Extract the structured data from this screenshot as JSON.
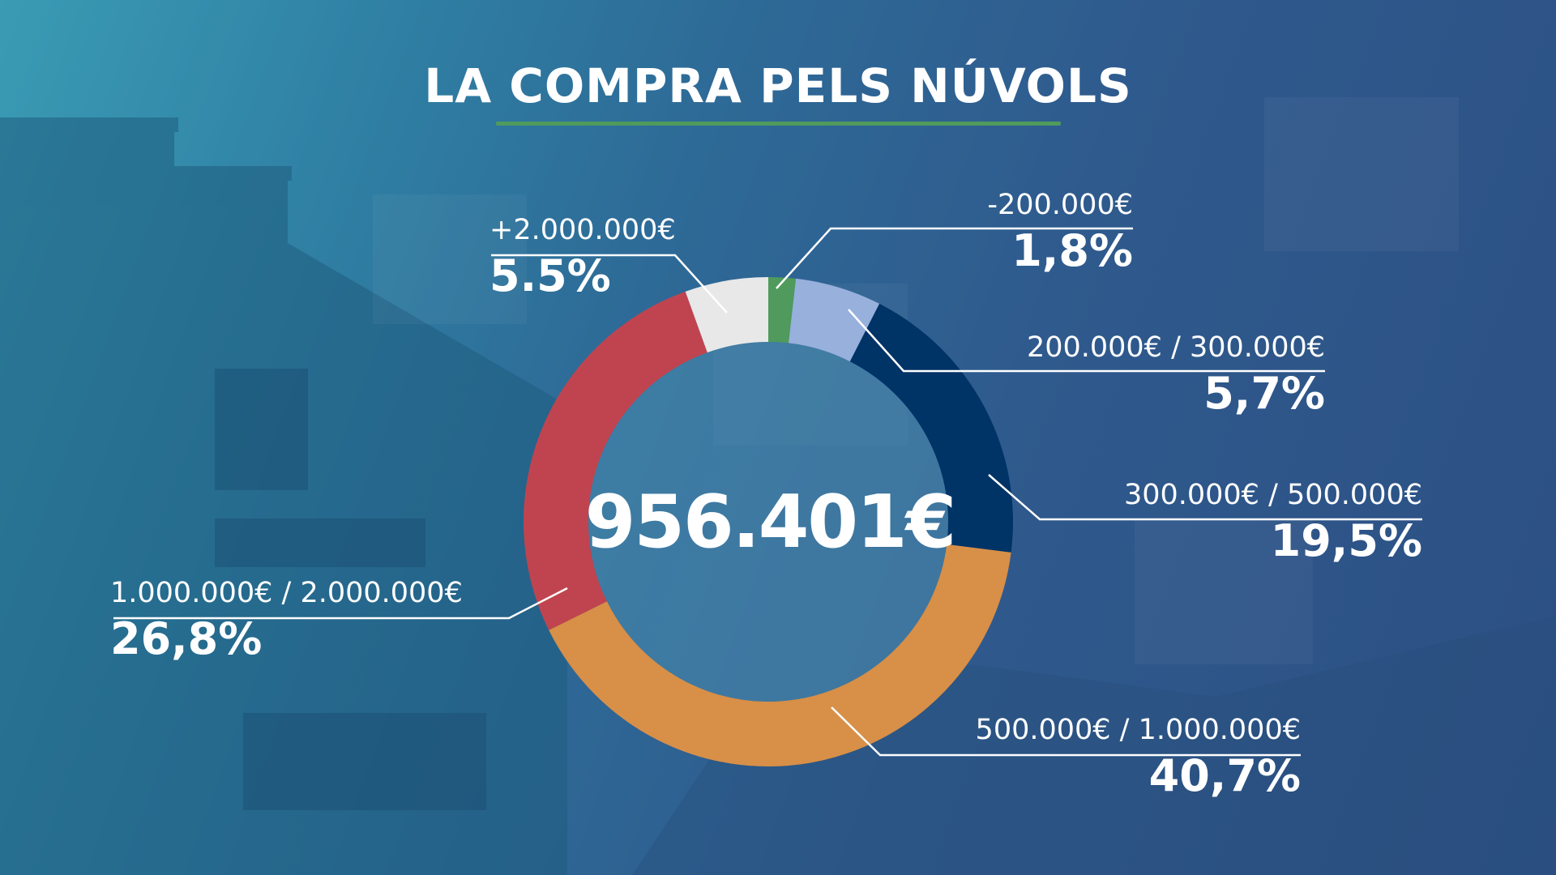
{
  "title": "LA COMPRA PELS NÚVOLS",
  "center_total": "956.401€",
  "colors": {
    "under_200k": "#4f9a5c",
    "200k_300k": "#98b0dc",
    "300k_500k": "#003366",
    "500k_1m": "#d88f47",
    "1m_2m": "#c0444f",
    "over_2m": "#e8e8e8",
    "title_rule": "#4f9a5c"
  },
  "chart_data": {
    "type": "pie",
    "donut": true,
    "title": "LA COMPRA PELS NÚVOLS",
    "center_label": "956.401€",
    "categories": [
      "-200.000€",
      "200.000€ / 300.000€",
      "300.000€ / 500.000€",
      "500.000€ / 1.000.000€",
      "1.000.000€ / 2.000.000€",
      "+2.000.000€"
    ],
    "values": [
      1.8,
      5.7,
      19.5,
      40.7,
      26.8,
      5.5
    ],
    "value_labels": [
      "1,8%",
      "5,7%",
      "19,5%",
      "40,7%",
      "26,8%",
      "5.5%"
    ],
    "colors": [
      "#4f9a5c",
      "#98b0dc",
      "#003366",
      "#d88f47",
      "#c0444f",
      "#e8e8e8"
    ]
  }
}
